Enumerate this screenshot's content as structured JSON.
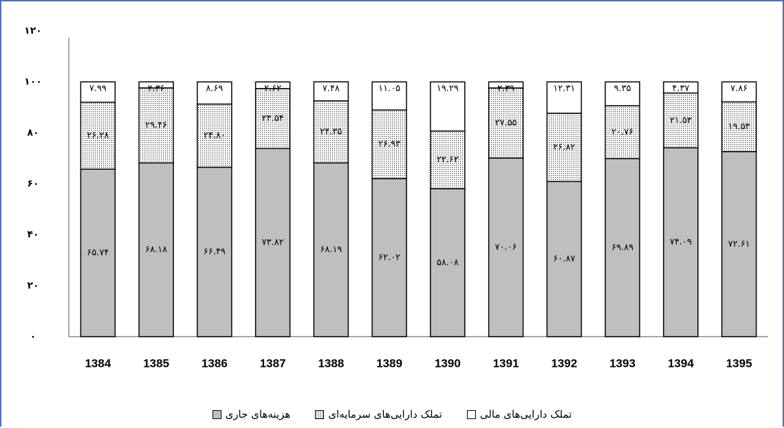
{
  "chart_data": {
    "type": "stacked_bar",
    "categories": [
      "1384",
      "1385",
      "1386",
      "1387",
      "1388",
      "1389",
      "1390",
      "1391",
      "1392",
      "1393",
      "1394",
      "1395"
    ],
    "series": [
      {
        "name": "هزینه‌های جاری",
        "color": "#bfbfbf",
        "values": [
          65.74,
          68.18,
          66.49,
          73.82,
          68.19,
          62.02,
          58.08,
          70.06,
          60.87,
          69.89,
          74.09,
          72.61
        ],
        "value_labels": [
          "۶۵.۷۴",
          "۶۸.۱۸",
          "۶۶.۴۹",
          "۷۳.۸۲",
          "۶۸.۱۹",
          "۶۲.۰۲",
          "۵۸.۰۸",
          "۷۰.۰۶",
          "۶۰.۸۷",
          "۶۹.۸۹",
          "۷۴.۰۹",
          "۷۲.۶۱"
        ]
      },
      {
        "name": "تملک دارایی‌های سرمایه‌ای",
        "color": "#ffffff",
        "pattern": "dots",
        "values": [
          26.28,
          29.46,
          24.8,
          23.54,
          24.35,
          26.93,
          22.62,
          27.55,
          26.82,
          20.76,
          21.53,
          19.53
        ],
        "value_labels": [
          "۲۶.۲۸",
          "۲۹.۴۶",
          "۲۴.۸۰",
          "۲۳.۵۴",
          "۲۴.۳۵",
          "۲۶.۹۳",
          "۲۲.۶۲",
          "۲۷.۵۵",
          "۲۶.۸۲",
          "۲۰.۷۶",
          "۲۱.۵۳",
          "۱۹.۵۳"
        ]
      },
      {
        "name": "تملک دارایی‌های مالی",
        "color": "#ffffff",
        "values": [
          7.99,
          2.36,
          8.69,
          2.62,
          7.48,
          11.05,
          19.29,
          2.39,
          12.31,
          9.35,
          4.37,
          7.86
        ],
        "value_labels": [
          "۷.۹۹",
          "۲.۳۶",
          "۸.۶۹",
          "۲.۶۲",
          "۷.۴۸",
          "۱۱.۰۵",
          "۱۹.۲۹",
          "۲.۳۹",
          "۱۲.۳۱",
          "۹.۳۵",
          "۴.۳۷",
          "۷.۸۶"
        ]
      }
    ],
    "ylim": [
      0,
      120
    ],
    "yticks": [
      {
        "value": 0,
        "label": "۰"
      },
      {
        "value": 20,
        "label": "۲۰"
      },
      {
        "value": 40,
        "label": "۴۰"
      },
      {
        "value": 60,
        "label": "۶۰"
      },
      {
        "value": 80,
        "label": "۸۰"
      },
      {
        "value": 100,
        "label": "۱۰۰"
      },
      {
        "value": 120,
        "label": "۱۲۰"
      }
    ],
    "legend": "bottom"
  }
}
